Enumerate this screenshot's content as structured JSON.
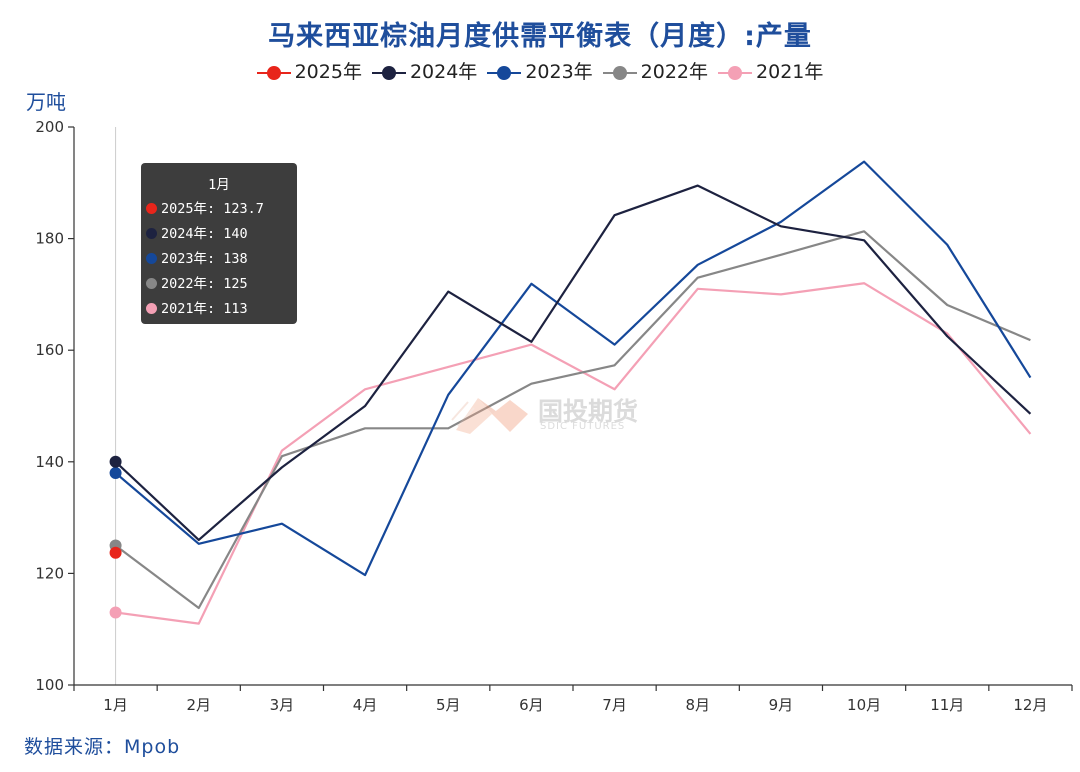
{
  "title": "马来西亚棕油月度供需平衡表（月度）:产量",
  "unit_label": "万吨",
  "source": "数据来源：Mpob",
  "watermark": {
    "cn": "国投期货",
    "en": "SDIC FUTURES"
  },
  "tooltip": {
    "title": "1月",
    "rows": [
      {
        "label": "2025年:",
        "value": "123.7",
        "color": "#e8251b"
      },
      {
        "label": "2024年:",
        "value": "140",
        "color": "#1d2240"
      },
      {
        "label": "2023年:",
        "value": "138",
        "color": "#15489a"
      },
      {
        "label": "2022年:",
        "value": "125",
        "color": "#878787"
      },
      {
        "label": "2021年:",
        "value": "113",
        "color": "#f4a0b5"
      }
    ]
  },
  "chart_data": {
    "type": "line",
    "categories": [
      "1月",
      "2月",
      "3月",
      "4月",
      "5月",
      "6月",
      "7月",
      "8月",
      "9月",
      "10月",
      "11月",
      "12月"
    ],
    "ylim": [
      100,
      200
    ],
    "yticks": [
      100,
      120,
      140,
      160,
      180,
      200
    ],
    "ylabel": "万吨",
    "legend_position": "top-center",
    "grid": false,
    "series": [
      {
        "name": "2025年",
        "color": "#e8251b",
        "values": [
          123.7,
          null,
          null,
          null,
          null,
          null,
          null,
          null,
          null,
          null,
          null,
          null
        ]
      },
      {
        "name": "2024年",
        "color": "#1d2240",
        "values": [
          140,
          126,
          139,
          150,
          170.5,
          161.5,
          184.2,
          189.5,
          182.2,
          179.7,
          162.5,
          148.6
        ]
      },
      {
        "name": "2023年",
        "color": "#15489a",
        "values": [
          138,
          125.3,
          128.9,
          119.7,
          152,
          171.9,
          161,
          175.3,
          183,
          193.8,
          178.9,
          155.1
        ]
      },
      {
        "name": "2022年",
        "color": "#878787",
        "values": [
          125,
          113.8,
          141,
          146,
          146,
          154,
          157.3,
          173,
          177.1,
          181.3,
          168.1,
          161.8
        ]
      },
      {
        "name": "2021年",
        "color": "#f4a0b5",
        "values": [
          113,
          111,
          142,
          153,
          157,
          161,
          153,
          171,
          170,
          172,
          163,
          145
        ]
      }
    ]
  }
}
